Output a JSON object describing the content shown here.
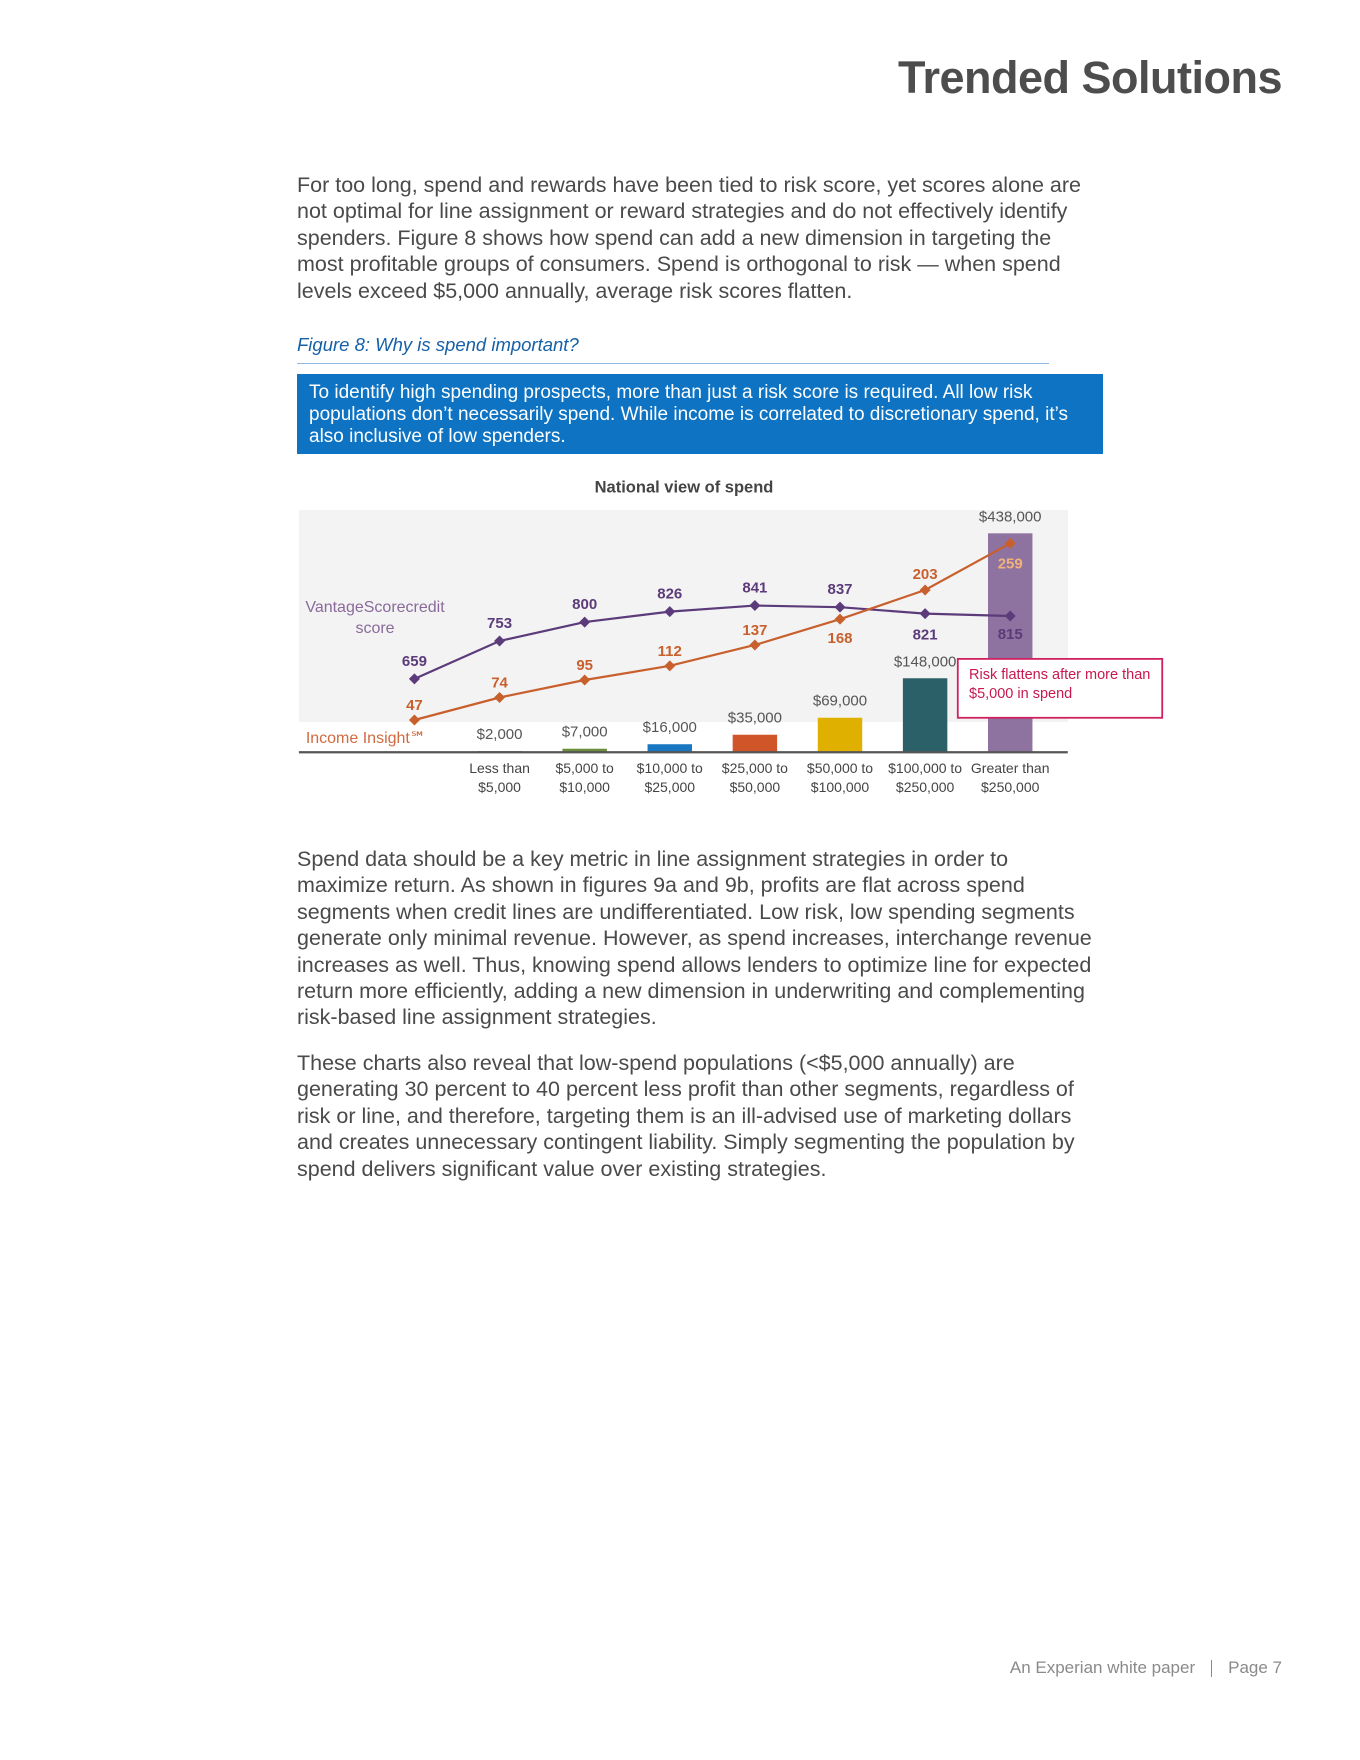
{
  "header": {
    "title": "Trended Solutions"
  },
  "paragraphs": [
    "For too long, spend and rewards have been tied to risk score, yet scores alone are not optimal for line assignment or reward strategies and do not effectively identify spenders. Figure 8 shows how spend can add a new dimension in targeting the most profitable groups of consumers. Spend is orthogonal to risk — when spend levels exceed $5,000 annually, average risk scores flatten.",
    "Spend data should be a key metric in line assignment strategies in order to maximize return. As shown in figures 9a and 9b, profits are flat across spend segments when credit lines are undifferentiated. Low risk, low spending segments generate only minimal revenue. However, as spend increases, interchange revenue increases as well. Thus, knowing spend allows lenders to optimize line for expected return more efficiently, adding a new dimension in underwriting and complementing risk-based line assignment strategies.",
    "These charts also reveal that low-spend populations (<$5,000 annually) are generating 30 percent to 40 percent less profit than other segments, regardless of risk or line, and therefore, targeting them is an ill-advised use of marketing dollars and creates unnecessary contingent liability. Simply segmenting the population by spend delivers significant value over existing strategies."
  ],
  "figure": {
    "caption": "Figure 8: Why is spend important?",
    "callout": "To identify high spending prospects, more than just a risk score is required. All low risk populations don’t necessarily spend. While income is correlated to discretionary spend, it’s also inclusive of low spenders."
  },
  "chart_data": {
    "type": "combo",
    "title": "National view of spend",
    "categories": [
      null,
      "Less than\n$5,000",
      "$5,000 to\n$10,000",
      "$10,000 to\n$25,000",
      "$25,000 to\n$50,000",
      "$50,000 to\n$100,000",
      "$100,000 to\n$250,000",
      "Greater than\n$250,000"
    ],
    "bars": {
      "values": [
        null,
        2000,
        7000,
        16000,
        35000,
        69000,
        148000,
        438000
      ],
      "value_labels": [
        null,
        "$2,000",
        "$7,000",
        "$16,000",
        "$35,000",
        "$69,000",
        "$148,000",
        "$438,000"
      ],
      "colors": [
        null,
        "#5e3a78",
        "#6b8e3a",
        "#1a78c2",
        "#d0562a",
        "#e0b000",
        "#2b6068",
        "#8e72a0"
      ]
    },
    "series": [
      {
        "name": "VantageScorecredit\nscore",
        "color": "#5b3b7a",
        "values": [
          659,
          753,
          800,
          826,
          841,
          837,
          821,
          815
        ]
      },
      {
        "name": "Income Insight℠",
        "color": "#c8602e",
        "values": [
          47,
          74,
          95,
          112,
          137,
          168,
          203,
          259
        ]
      }
    ],
    "annotation": "Risk flattens after more than $5,000 in spend"
  },
  "footer": {
    "source": "An Experian white paper",
    "page": "Page 7"
  }
}
